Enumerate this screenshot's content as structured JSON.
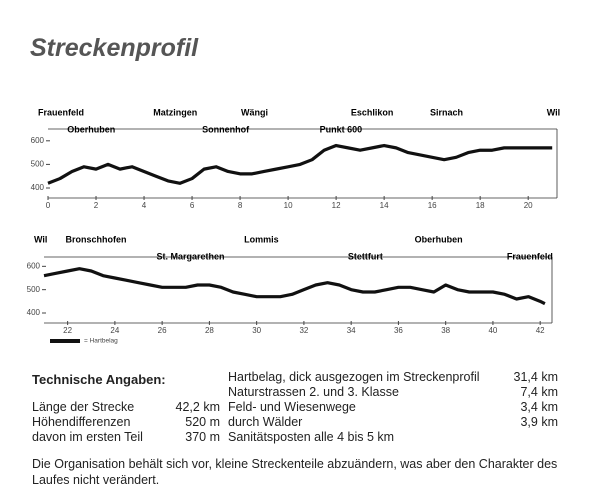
{
  "title": "Streckenprofil",
  "chart_data": [
    {
      "type": "line",
      "xlim": [
        0,
        21.2
      ],
      "ylim": [
        400,
        650
      ],
      "xticks": [
        0,
        2,
        4,
        6,
        8,
        10,
        12,
        14,
        16,
        18,
        20
      ],
      "yticks": [
        400,
        500,
        600
      ],
      "x": [
        0,
        0.5,
        1,
        1.5,
        2,
        2.5,
        3,
        3.5,
        4,
        4.5,
        5,
        5.5,
        6,
        6.5,
        7,
        7.5,
        8,
        8.5,
        9,
        9.5,
        10,
        10.5,
        11,
        11.5,
        12,
        12.5,
        13,
        13.5,
        14,
        14.5,
        15,
        15.5,
        16,
        16.5,
        17,
        17.5,
        18,
        18.5,
        19,
        19.5,
        20,
        20.5,
        21
      ],
      "series": [
        {
          "name": "= Hartbelag",
          "color": "#111111",
          "values": [
            420,
            440,
            470,
            490,
            480,
            500,
            480,
            490,
            470,
            450,
            430,
            420,
            440,
            480,
            490,
            470,
            460,
            460,
            470,
            480,
            490,
            500,
            520,
            560,
            580,
            570,
            560,
            570,
            580,
            570,
            550,
            540,
            530,
            520,
            530,
            550,
            560,
            560,
            570,
            570,
            570,
            570,
            570
          ]
        }
      ],
      "annotations": [
        {
          "text": "Frauenfeld",
          "x": 0
        },
        {
          "text": "Oberhuben",
          "x": 1.8
        },
        {
          "text": "Matzingen",
          "x": 5.3
        },
        {
          "text": "Sonnenhof",
          "x": 7.4
        },
        {
          "text": "Wängi",
          "x": 8.6
        },
        {
          "text": "Punkt 600",
          "x": 12.2
        },
        {
          "text": "Eschlikon",
          "x": 13.5
        },
        {
          "text": "Sirnach",
          "x": 16.6
        },
        {
          "text": "Wil",
          "x": 21
        }
      ]
    },
    {
      "type": "line",
      "xlim": [
        21,
        42.5
      ],
      "ylim": [
        400,
        640
      ],
      "xticks": [
        22,
        24,
        26,
        28,
        30,
        32,
        34,
        36,
        38,
        40,
        42
      ],
      "yticks": [
        400,
        500,
        600
      ],
      "x": [
        21,
        21.5,
        22,
        22.5,
        23,
        23.5,
        24,
        24.5,
        25,
        25.5,
        26,
        26.5,
        27,
        27.5,
        28,
        28.5,
        29,
        29.5,
        30,
        30.5,
        31,
        31.5,
        32,
        32.5,
        33,
        33.5,
        34,
        34.5,
        35,
        35.5,
        36,
        36.5,
        37,
        37.5,
        38,
        38.5,
        39,
        39.5,
        40,
        40.5,
        41,
        41.5,
        42,
        42.2
      ],
      "series": [
        {
          "color": "#111111",
          "values": [
            560,
            570,
            580,
            590,
            580,
            560,
            550,
            540,
            530,
            520,
            510,
            510,
            510,
            520,
            520,
            510,
            490,
            480,
            470,
            470,
            470,
            480,
            500,
            520,
            530,
            520,
            500,
            490,
            490,
            500,
            510,
            510,
            500,
            490,
            520,
            500,
            490,
            490,
            490,
            480,
            460,
            470,
            450,
            440
          ]
        }
      ],
      "annotations": [
        {
          "text": "Wil",
          "x": 21
        },
        {
          "text": "Bronschhofen",
          "x": 23.2
        },
        {
          "text": "St. Margarethen",
          "x": 27.2
        },
        {
          "text": "Lommis",
          "x": 30.2
        },
        {
          "text": "Stettfurt",
          "x": 34.6
        },
        {
          "text": "Oberhuben",
          "x": 37.7
        },
        {
          "text": "Frauenfeld",
          "x": 42.2
        }
      ]
    }
  ],
  "tech": {
    "heading": "Technische Angaben:",
    "left": [
      [
        "Länge der Strecke",
        "42,2 km"
      ],
      [
        "Höhendifferenzen",
        "520 m"
      ],
      [
        "davon im ersten Teil",
        "370 m"
      ]
    ],
    "right": [
      [
        "Hartbelag, dick ausgezogen im Streckenprofil",
        "31,4 km"
      ],
      [
        "Naturstrassen 2. und 3. Klasse",
        "7,4 km"
      ],
      [
        "Feld- und Wiesenwege",
        "3,4 km"
      ],
      [
        "durch Wälder",
        "3,9 km"
      ],
      [
        "Sanitätsposten alle 4 bis 5 km"
      ]
    ]
  },
  "note": "Die Organisation behält sich vor, kleine Streckenteile abzuändern, was aber den Charakter des Laufes nicht verändert."
}
